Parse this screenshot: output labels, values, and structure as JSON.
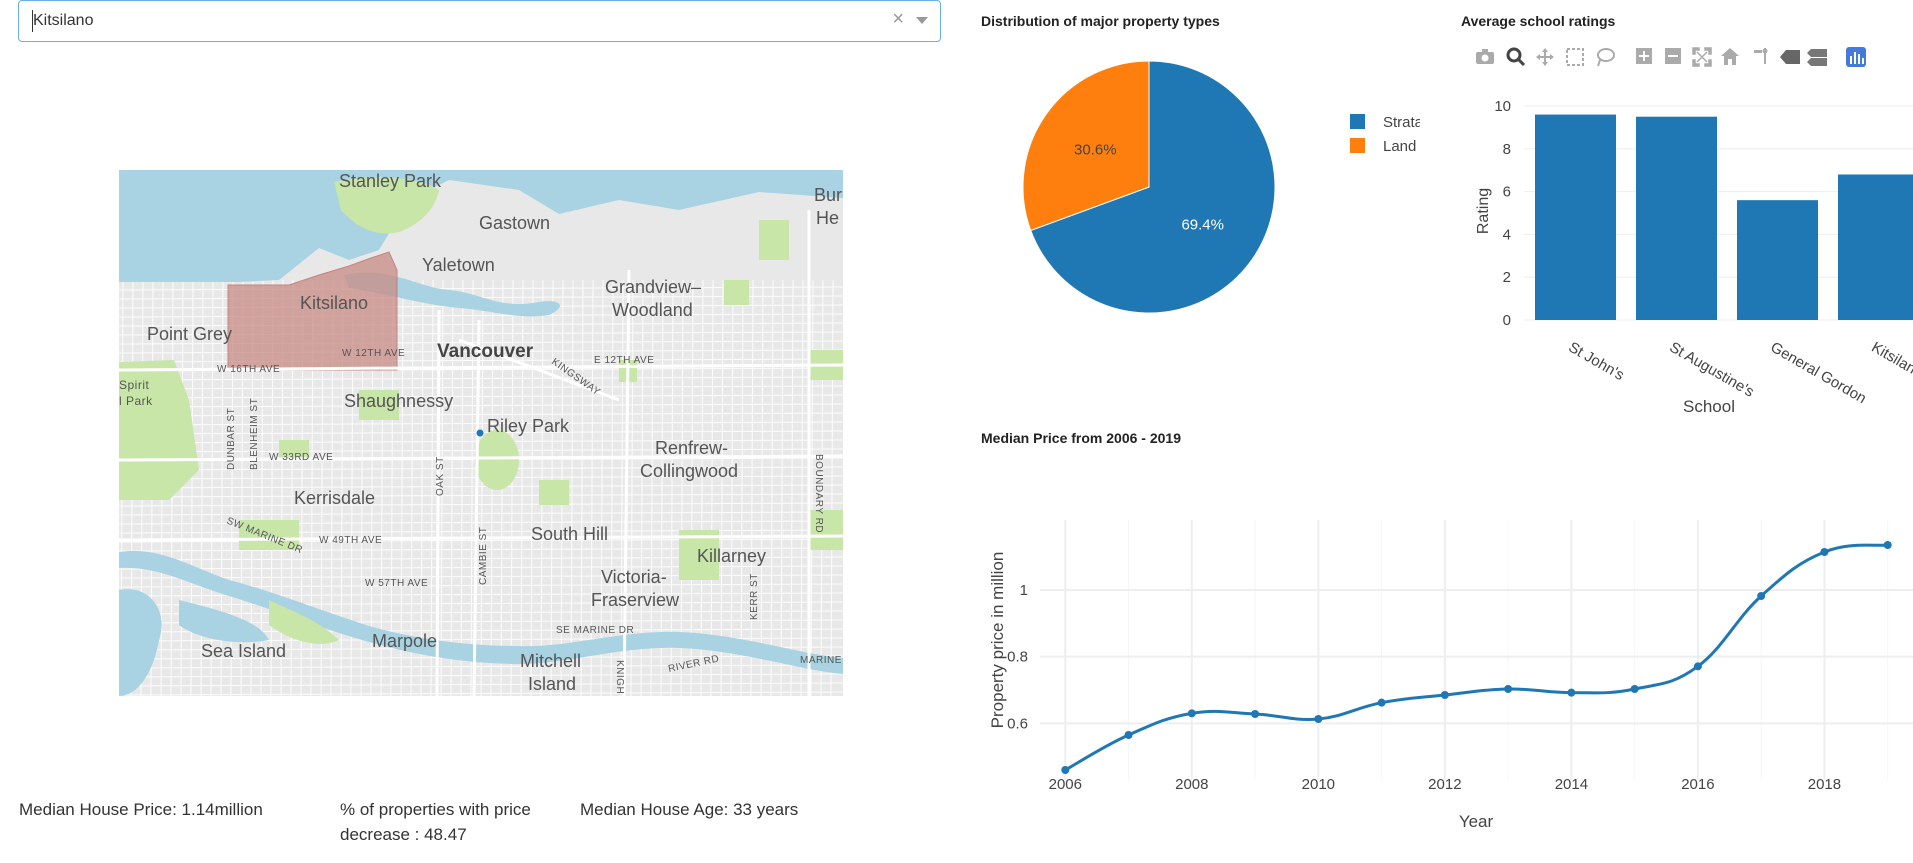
{
  "selector": {
    "value": "Kitsilano",
    "clear_glyph": "×"
  },
  "map": {
    "labels": {
      "stanley_park": "Stanley Park",
      "gastown": "Gastown",
      "yaletown": "Yaletown",
      "grandview": "Grandview–",
      "woodland": "Woodland",
      "kitsilano": "Kitsilano",
      "point_grey": "Point Grey",
      "vancouver": "Vancouver",
      "shaughnessy": "Shaughnessy",
      "riley_park": "Riley Park",
      "renfrew": "Renfrew-",
      "collingwood": "Collingwood",
      "kerrisdale": "Kerrisdale",
      "south_hill": "South Hill",
      "killarney": "Killarney",
      "victoria": "Victoria-",
      "fraserview": "Fraserview",
      "sea_island": "Sea Island",
      "marpole": "Marpole",
      "mitchell": "Mitchell",
      "island": "Island",
      "bur": "Bur",
      "he": "He",
      "spirit": "Spirit",
      "lpark": "l Park"
    },
    "streets": {
      "w16": "W 16TH AVE",
      "w12": "W 12TH AVE",
      "e12": "E 12TH AVE",
      "kingsway": "KINGSWAY",
      "dunbar": "DUNBAR ST",
      "blenheim": "BLENHEIM ST",
      "w33": "W 33RD AVE",
      "oak": "OAK ST",
      "sw_marine": "SW MARINE DR",
      "w49": "W 49TH AVE",
      "cambie": "CAMBIE ST",
      "w57": "W 57TH AVE",
      "se_marine": "SE MARINE DR",
      "kerr": "KERR ST",
      "boundary": "BOUNDARY RD",
      "marine": "MARINE",
      "river": "RIVER RD",
      "knight": "KNIGH"
    },
    "colors": {
      "water": "#a9d3e3",
      "land": "#e8e8e8",
      "park": "#c8e6a8",
      "highlight": "#c98b84"
    }
  },
  "stats": {
    "median_price": "Median House Price: 1.14million",
    "pct_decrease_line1": "% of properties with price",
    "pct_decrease_line2": "decrease : 48.47",
    "median_age": "Median House Age: 33 years"
  },
  "titles": {
    "pie": "Distribution of major property types",
    "bar": "Average school ratings",
    "line": "Median Price from 2006 - 2019"
  },
  "modebar": {
    "icons": [
      "camera-icon",
      "zoom-icon",
      "pan-icon",
      "box-select-icon",
      "lasso-icon",
      "zoom-in-icon",
      "zoom-out-icon",
      "autoscale-icon",
      "reset-axes-icon",
      "spike-lines-icon",
      "hover-closest-icon",
      "hover-compare-icon",
      "plotly-logo-icon"
    ]
  },
  "chart_data": [
    {
      "type": "pie",
      "title": "Distribution of major property types",
      "labels": [
        "Strata",
        "Land"
      ],
      "values": [
        69.4,
        30.6
      ],
      "text": [
        "69.4%",
        "30.6%"
      ],
      "colors": [
        "#1f77b4",
        "#ff7f0e"
      ],
      "legend": "right"
    },
    {
      "type": "bar",
      "title": "Average school ratings",
      "categories": [
        "St John's",
        "St Augustine's",
        "General Gordon",
        "Kitsilano"
      ],
      "values": [
        9.6,
        9.5,
        5.6,
        6.8
      ],
      "xlabel": "School",
      "ylabel": "Rating",
      "ylim": [
        0,
        10
      ],
      "yticks": [
        "0",
        "2",
        "4",
        "6",
        "8",
        "10"
      ],
      "color": "#1f77b4"
    },
    {
      "type": "line",
      "title": "Median Price from 2006 - 2019",
      "x": [
        2006,
        2007,
        2008,
        2009,
        2010,
        2011,
        2012,
        2013,
        2014,
        2015,
        2016,
        2017,
        2018,
        2019
      ],
      "y": [
        0.46,
        0.565,
        0.63,
        0.628,
        0.613,
        0.662,
        0.685,
        0.703,
        0.692,
        0.703,
        0.771,
        0.982,
        1.114,
        1.135
      ],
      "xlabel": "Year",
      "ylabel": "Property price in million",
      "xticks": [
        "2006",
        "2008",
        "2010",
        "2012",
        "2014",
        "2016",
        "2018"
      ],
      "yticks": [
        "0.6",
        "0.8",
        "1"
      ],
      "xlim": [
        2005.6,
        2019.4
      ],
      "ylim": [
        0.43,
        1.21
      ],
      "grid": true,
      "color": "#1f77b4"
    }
  ]
}
